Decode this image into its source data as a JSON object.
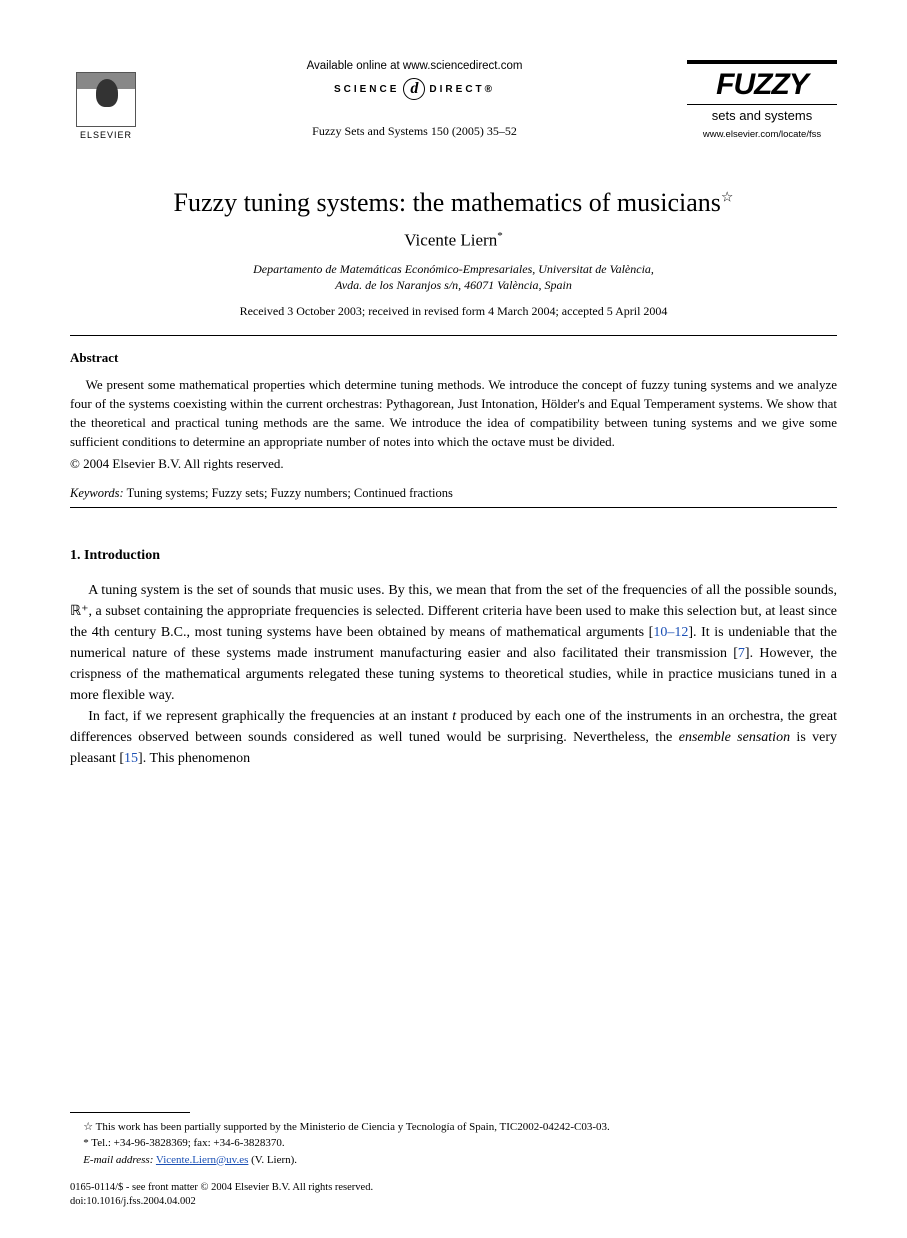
{
  "header": {
    "publisher_name": "ELSEVIER",
    "available_online": "Available online at www.sciencedirect.com",
    "science_label_left": "SCIENCE",
    "science_label_right": "DIRECT®",
    "sd_orb_char": "d",
    "citation": "Fuzzy Sets and Systems 150 (2005) 35–52",
    "journal_title": "FUZZY",
    "journal_subtitle": "sets and systems",
    "journal_url": "www.elsevier.com/locate/fss"
  },
  "article": {
    "title": "Fuzzy tuning systems: the mathematics of musicians",
    "title_mark": "☆",
    "author": "Vicente Liern",
    "author_mark": "*",
    "affiliation_line1": "Departamento de Matemáticas Económico-Empresariales, Universitat de València,",
    "affiliation_line2": "Avda. de los Naranjos s/n, 46071 València, Spain",
    "dates": "Received 3 October 2003; received in revised form 4 March 2004; accepted 5 April 2004"
  },
  "abstract": {
    "heading": "Abstract",
    "body": "We present some mathematical properties which determine tuning methods. We introduce the concept of fuzzy tuning systems and we analyze four of the systems coexisting within the current orchestras: Pythagorean, Just Intonation, Hölder's and Equal Temperament systems. We show that the theoretical and practical tuning methods are the same. We introduce the idea of compatibility between tuning systems and we give some sufficient conditions to determine an appropriate number of notes into which the octave must be divided.",
    "copyright": "© 2004 Elsevier B.V. All rights reserved."
  },
  "keywords": {
    "label": "Keywords:",
    "text": "Tuning systems; Fuzzy sets; Fuzzy numbers; Continued fractions"
  },
  "section1": {
    "heading": "1.  Introduction",
    "para1_a": "A tuning system is the set of sounds that music uses. By this, we mean that from the set of the frequencies of all the possible sounds, ℝ⁺, a subset containing the appropriate frequencies is selected. Different criteria have been used to make this selection but, at least since the 4th century B.C., most tuning systems have been obtained by means of mathematical arguments [",
    "cite1": "10–12",
    "para1_b": "]. It is undeniable that the numerical nature of these systems made instrument manufacturing easier and also facilitated their transmission [",
    "cite2": "7",
    "para1_c": "]. However, the crispness of the mathematical arguments relegated these tuning systems to theoretical studies, while in practice musicians tuned in a more flexible way.",
    "para2_a": "In fact, if we represent graphically the frequencies at an instant ",
    "para2_it": "t",
    "para2_b": " produced by each one of the instruments in an orchestra, the great differences observed between sounds considered as well tuned would be surprising. Nevertheless, the ",
    "para2_it2": "ensemble sensation",
    "para2_c": " is very pleasant [",
    "cite3": "15",
    "para2_d": "]. This phenomenon"
  },
  "footnotes": {
    "fn_star": "☆ This work has been partially supported by the Ministerio de Ciencia y Tecnología of Spain, TIC2002-04242-C03-03.",
    "fn_ast": "* Tel.: +34-96-3828369; fax: +34-6-3828370.",
    "email_label": "E-mail address:",
    "email": "Vicente.Liern@uv.es",
    "email_owner": "(V. Liern)."
  },
  "bottom": {
    "issn_line": "0165-0114/$ - see front matter © 2004 Elsevier B.V. All rights reserved.",
    "doi_line": "doi:10.1016/j.fss.2004.04.002"
  },
  "colors": {
    "text": "#000000",
    "link": "#1a4fb5",
    "background": "#ffffff"
  },
  "typography": {
    "title_fontsize": 26,
    "author_fontsize": 17,
    "body_fontsize": 14,
    "abstract_fontsize": 13,
    "footnote_fontsize": 11
  }
}
